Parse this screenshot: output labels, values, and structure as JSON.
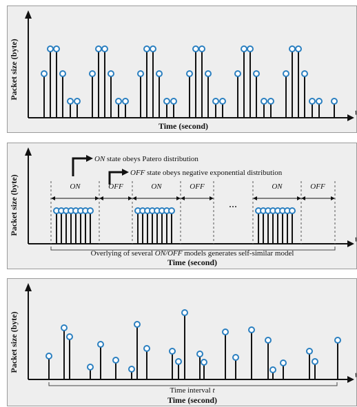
{
  "panel1": {
    "ylabel": "Packet size (byte)",
    "xlabel": "Time (second)",
    "axis_t": "t"
  },
  "panel2": {
    "ylabel": "Packet size (byte)",
    "xlabel": "Time (second)",
    "axis_t": "t",
    "legend_on_term": "ON",
    "legend_on_rest": " state obeys Patero distribution",
    "legend_off_term": "OFF",
    "legend_off_rest": " state obeys negative exponential distribution",
    "seg_labels": [
      "ON",
      "OFF",
      "ON",
      "OFF",
      "ON",
      "OFF"
    ],
    "ellipsis": "···",
    "caption_a": "Overlying of several ",
    "caption_b": "ON/OFF",
    "caption_c": " models generates self-similar model"
  },
  "panel3": {
    "ylabel": "Packet size (byte)",
    "xlabel": "Time (second)",
    "axis_t": "t",
    "interval_a": "Time interval ",
    "interval_b": "t"
  },
  "colors": {
    "marker": "#2a7fc0",
    "ink": "#111111",
    "panel": "#eeeeee"
  }
}
